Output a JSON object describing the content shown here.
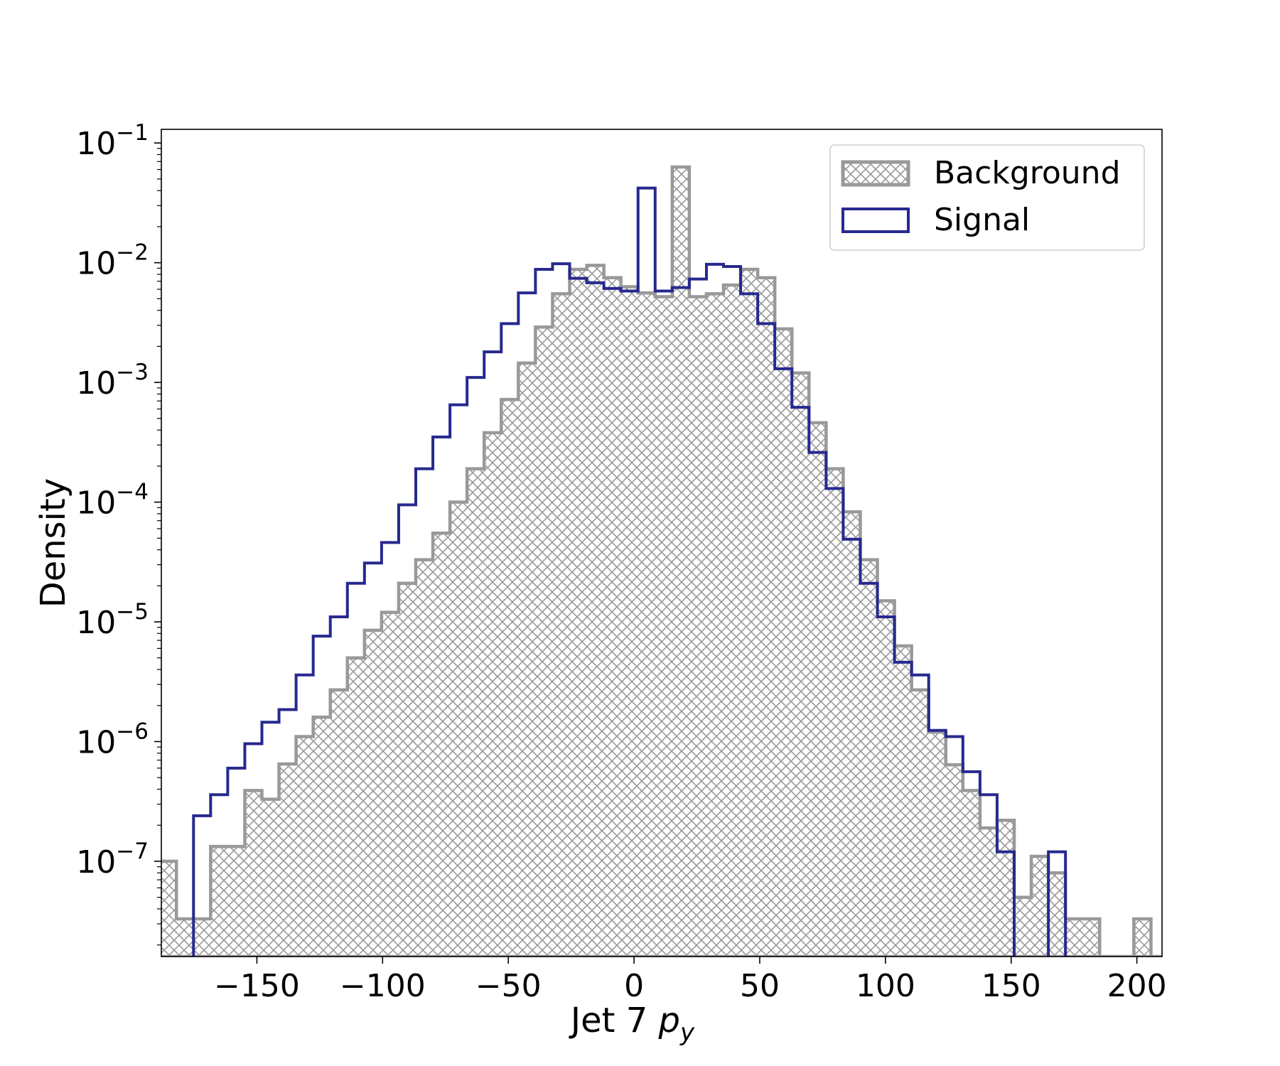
{
  "chart_data": {
    "type": "histogram",
    "xlabel": "Jet 7 p_y",
    "xlabel_parts": {
      "main": "Jet 7 ",
      "var": "p",
      "sub": "y"
    },
    "ylabel": "Density",
    "xlim": [
      -188,
      210
    ],
    "ylim": [
      1.6e-08,
      0.13
    ],
    "yscale": "log",
    "grid": false,
    "legend_position": "top-right",
    "x_ticks": [
      {
        "value": -150,
        "label": "−150"
      },
      {
        "value": -100,
        "label": "−100"
      },
      {
        "value": -50,
        "label": "−50"
      },
      {
        "value": 0,
        "label": "0"
      },
      {
        "value": 50,
        "label": "50"
      },
      {
        "value": 100,
        "label": "100"
      },
      {
        "value": 150,
        "label": "150"
      },
      {
        "value": 200,
        "label": "200"
      }
    ],
    "y_ticks": [
      {
        "value": 0.1,
        "base": "10",
        "exp": "−1"
      },
      {
        "value": 0.01,
        "base": "10",
        "exp": "−2"
      },
      {
        "value": 0.001,
        "base": "10",
        "exp": "−3"
      },
      {
        "value": 0.0001,
        "base": "10",
        "exp": "−4"
      },
      {
        "value": 1e-05,
        "base": "10",
        "exp": "−5"
      },
      {
        "value": 1e-06,
        "base": "10",
        "exp": "−6"
      },
      {
        "value": 1e-07,
        "base": "10",
        "exp": "−7"
      }
    ],
    "bin_edges": [
      -195.6,
      -188.8,
      -182.0,
      -175.2,
      -168.4,
      -161.6,
      -154.8,
      -148.0,
      -141.2,
      -134.4,
      -127.6,
      -120.8,
      -114.0,
      -107.2,
      -100.4,
      -93.6,
      -86.8,
      -80.0,
      -73.2,
      -66.4,
      -59.6,
      -52.8,
      -46.0,
      -39.2,
      -32.4,
      -25.6,
      -18.8,
      -12.0,
      -5.2,
      1.6,
      8.4,
      15.2,
      22.0,
      28.8,
      35.6,
      42.4,
      49.2,
      56.0,
      62.8,
      69.6,
      76.4,
      83.2,
      90.0,
      96.8,
      103.6,
      110.4,
      117.2,
      124.0,
      130.8,
      137.6,
      144.4,
      151.2,
      158.0,
      164.8,
      171.6,
      178.4,
      185.2,
      192.0,
      198.8,
      205.6,
      212.4
    ],
    "series": [
      {
        "name": "Background",
        "style": "hatched",
        "color": "#999999",
        "values": [
          1e-07,
          1e-07,
          3.3e-08,
          3.3e-08,
          1.33e-07,
          1.33e-07,
          3.9e-07,
          3.3e-07,
          6.5e-07,
          1.1e-06,
          1.6e-06,
          2.7e-06,
          5e-06,
          8.5e-06,
          1.2e-05,
          2.1e-05,
          3.3e-05,
          5.5e-05,
          0.0001,
          0.00019,
          0.00038,
          0.00072,
          0.00145,
          0.0029,
          0.0055,
          0.0088,
          0.0095,
          0.0075,
          0.0063,
          0.0056,
          0.0052,
          0.063,
          0.0052,
          0.0055,
          0.0065,
          0.0088,
          0.0075,
          0.0028,
          0.0012,
          0.00046,
          0.00019,
          8.3e-05,
          3.3e-05,
          1.5e-05,
          6.3e-06,
          2.7e-06,
          1.2e-06,
          6.4e-07,
          3.9e-07,
          1.9e-07,
          2.2e-07,
          5e-08,
          1.1e-07,
          8e-08,
          3.3e-08,
          3.3e-08,
          1.6e-08,
          1.6e-08,
          3.3e-08,
          1.6e-08
        ]
      },
      {
        "name": "Signal",
        "style": "step",
        "color": "#27298f",
        "values": [
          null,
          null,
          null,
          2.4e-07,
          3.6e-07,
          6e-07,
          9.6e-07,
          1.45e-06,
          1.85e-06,
          3.6e-06,
          7.6e-06,
          1.1e-05,
          2.1e-05,
          3.1e-05,
          4.6e-05,
          9.5e-05,
          0.00019,
          0.00035,
          0.00065,
          0.0011,
          0.0018,
          0.0031,
          0.0056,
          0.0088,
          0.0098,
          0.0074,
          0.0068,
          0.0061,
          0.0058,
          0.042,
          0.0058,
          0.0062,
          0.0073,
          0.0097,
          0.0093,
          0.0055,
          0.0031,
          0.0013,
          0.00062,
          0.00026,
          0.00013,
          4.9e-05,
          2.1e-05,
          1.1e-05,
          4.6e-06,
          3.6e-06,
          1.24e-06,
          1.1e-06,
          5.6e-07,
          3.6e-07,
          1.2e-07,
          null,
          null,
          1.2e-07,
          null,
          null,
          null,
          null,
          null,
          null
        ]
      }
    ]
  }
}
